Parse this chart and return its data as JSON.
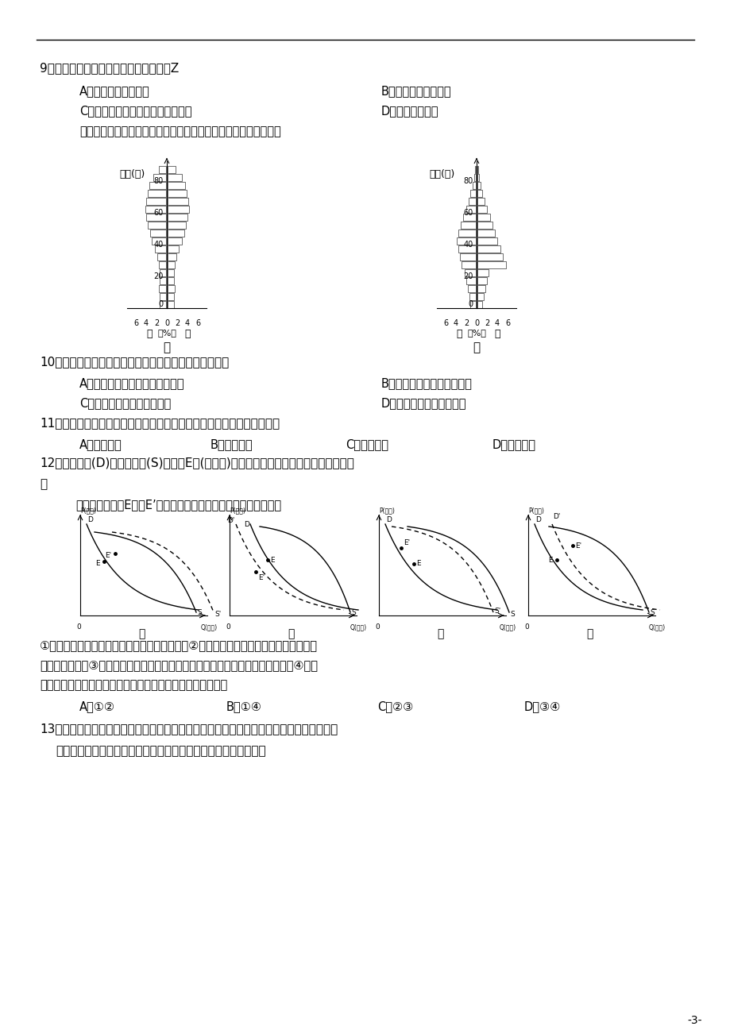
{
  "background_color": "#ffffff",
  "page_number": "-3-",
  "q9_text": "9、与其它两作物相比较，单位面积作物Z",
  "q9_A": "A．单位距离运费最低",
  "q9_B": "B．单位距离运费最高",
  "q9_C": "C．随距城镇距离增大收益递减最快",
  "q9_D": "D．总是收益最低",
  "q9_intro": "下图为甲、乙两城市人口的年龄结构示意图。读图回答以下小题。",
  "q10_text": "10、关于两城市人口结构的特征形成原因，分析合理的是",
  "q10_A": "A．甲城市医疗条件好，死亡率低",
  "q10_B": "B．乙城市人口自然增长率高",
  "q10_C": "C．甲城市劳动人口大量外迁",
  "q10_D": "D．乙城市劳动力严重不足",
  "q11_text": "11、据人口年龄、性别结构判断，乙城市服务功能中占重要地位的可能是",
  "q11_A": "A．文化教育",
  "q11_B": "B．交通运输",
  "q11_C": "C．汽车维修",
  "q11_D": "D．旅游疗养",
  "q12_text1": "12、需求曲线(D)与供给曲线(S)相交于E点(平衡点)。如果不考虑其他条件，当某种条件发",
  "q12_text2": "生",
  "q12_text3": "变化时，会引起E点向E’点移动。以下对这种移动解释合理的是：",
  "explain1": "①绿色产品日益受到人们青昧，发生甲图变化；②进口汽车受整车进口关税下调的影响，",
  "explain2": "发生乙图变化；③国家加强环保整治力度，某行业限产停产增加，发生丙图变化；④受人",
  "explain3": "工智能发展的影响，创新型劳动力的需求旺盛，发生丁图变化",
  "q12_A": "A．①②",
  "q12_B": "B．①④",
  "q12_C": "C．②③",
  "q12_D": "D．③④",
  "q13_text1": "13、某国是铁矿石、石油等大宗商品（以美元计价）的进口国。当美元指数持续上涨时，该",
  "q13_text2": "国面临通货膨胀的压力。不考虑其他因素的影响，这一传导过程是"
}
